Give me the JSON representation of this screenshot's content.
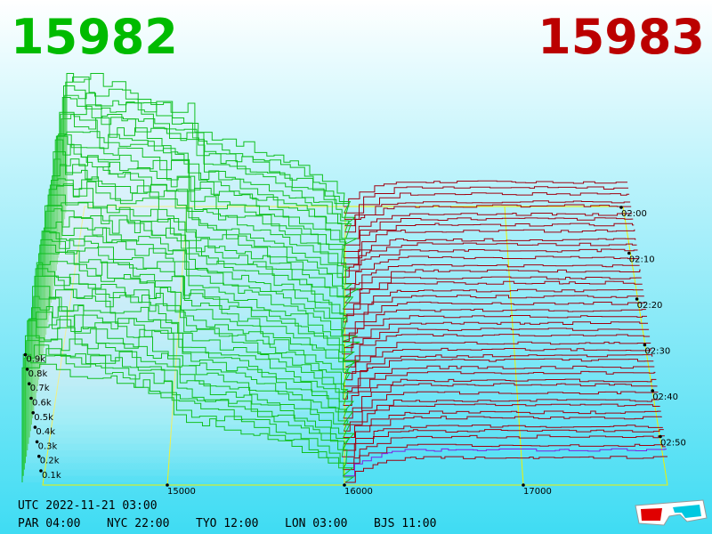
{
  "header": {
    "bid_price": "15982",
    "ask_price": "15983"
  },
  "price_axis": [
    "15000",
    "16000",
    "17000"
  ],
  "depth_axis": [
    "0.1k",
    "0.2k",
    "0.3k",
    "0.4k",
    "0.5k",
    "0.6k",
    "0.7k",
    "0.8k",
    "0.9k"
  ],
  "time_axis": [
    "02:00",
    "02:10",
    "02:20",
    "02:30",
    "02:40",
    "02:50"
  ],
  "footer": {
    "utc": "UTC 2022-11-21 03:00",
    "clocks": [
      "PAR 04:00",
      "NYC 22:00",
      "TYO 12:00",
      "LON 03:00",
      "BJS 11:00"
    ]
  }
}
